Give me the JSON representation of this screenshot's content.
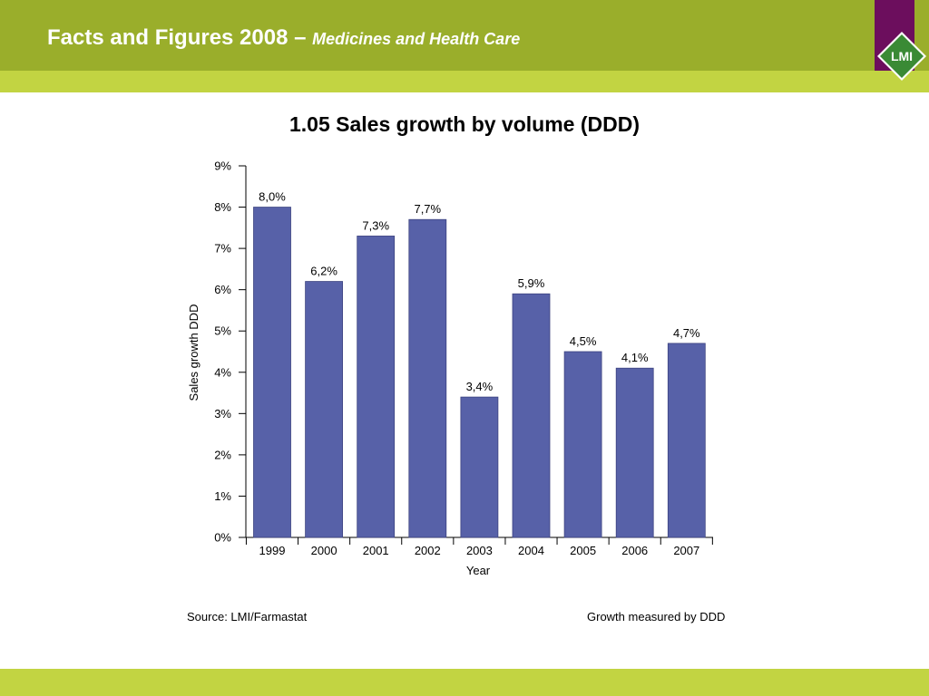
{
  "header": {
    "title": "Facts and Figures 2008 –",
    "subtitle": "Medicines and Health Care",
    "logo_text": "LMI",
    "colors": {
      "band": "#9aae2b",
      "band_light": "#c2d442",
      "logo_panel": "#6c0e5d",
      "logo_green": "#3a8a35"
    }
  },
  "footer": {
    "source": "Source: LMI/Farmastat",
    "note": "Growth measured by DDD"
  },
  "chart_data": {
    "type": "bar",
    "title": "1.05 Sales growth by volume (DDD)",
    "xlabel": "Year",
    "ylabel": "Sales growth DDD",
    "categories": [
      "1999",
      "2000",
      "2001",
      "2002",
      "2003",
      "2004",
      "2005",
      "2006",
      "2007"
    ],
    "values": [
      8.0,
      6.2,
      7.3,
      7.7,
      3.4,
      5.9,
      4.5,
      4.1,
      4.7
    ],
    "value_labels": [
      "8,0%",
      "6,2%",
      "7,3%",
      "7,7%",
      "3,4%",
      "5,9%",
      "4,5%",
      "4,1%",
      "4,7%"
    ],
    "ylim": [
      0,
      9
    ],
    "yticks": [
      "0%",
      "1%",
      "2%",
      "3%",
      "4%",
      "5%",
      "6%",
      "7%",
      "8%",
      "9%"
    ],
    "bar_color": "#5761a8",
    "grid": false,
    "legend": "none"
  }
}
